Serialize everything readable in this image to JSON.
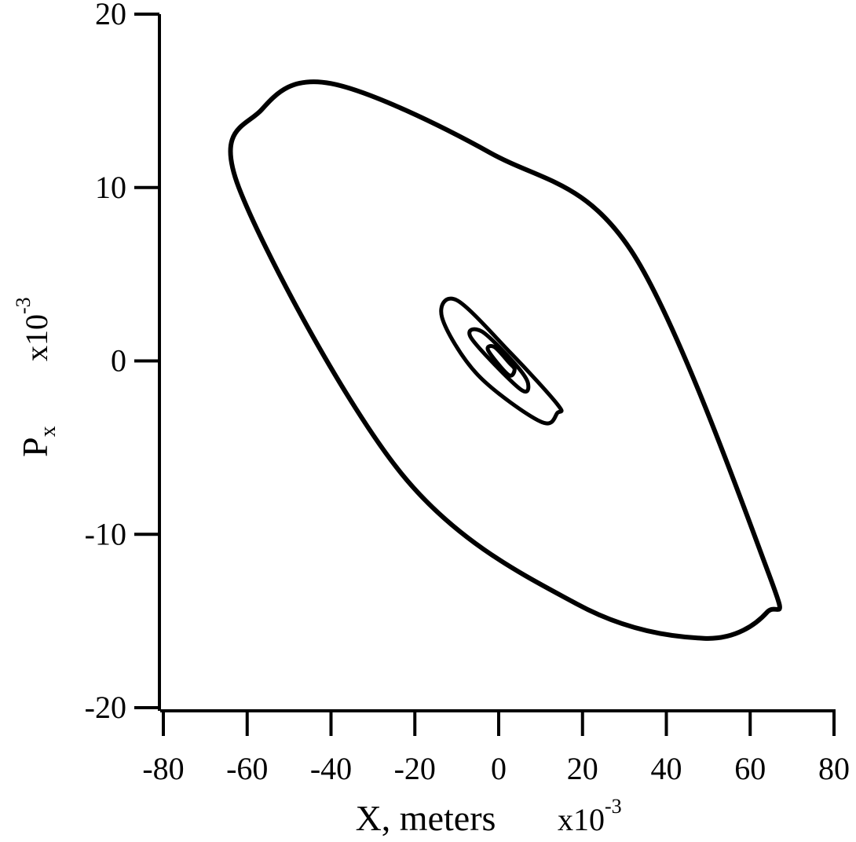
{
  "chart_data": {
    "type": "line",
    "title": "",
    "xlabel": "X, meters",
    "xlabel_multiplier": "x10",
    "xlabel_multiplier_exp": "-3",
    "ylabel_main": "P",
    "ylabel_sub": "x",
    "ylabel_multiplier": "x10",
    "ylabel_multiplier_exp": "-3",
    "xlim": [
      -80,
      80
    ],
    "ylim": [
      -20,
      20
    ],
    "x_ticks": [
      -80,
      -60,
      -40,
      -20,
      0,
      20,
      40,
      60,
      80
    ],
    "x_tick_labels": [
      "-80",
      "-60",
      "-40",
      "-20",
      "0",
      "20",
      "40",
      "60",
      "80"
    ],
    "y_ticks": [
      20,
      10,
      0,
      -10,
      -20
    ],
    "y_tick_labels": [
      "20",
      "10",
      "0",
      "-10",
      "-20"
    ],
    "grid": false,
    "legend": "none",
    "line_color": "#000000",
    "series": [
      {
        "x": [
          -62,
          -56.5,
          -40,
          -2,
          31.5,
          64,
          64,
          49,
          18.5,
          -23.2,
          -62
        ],
        "y": [
          10,
          14.5,
          16,
          12,
          6.4,
          -12,
          -14.5,
          -16,
          -14,
          -6.5,
          10
        ]
      },
      {
        "x": [
          -13.5,
          -10,
          2.7,
          14,
          14,
          10,
          -5,
          -13.5
        ],
        "y": [
          2.5,
          3.5,
          0.5,
          -2.5,
          -3,
          -3.5,
          -0.8,
          2.5
        ]
      },
      {
        "x": [
          -6.5,
          -4,
          4,
          7,
          5,
          -6.5
        ],
        "y": [
          1.3,
          1.7,
          -0.2,
          -1.3,
          -1.6,
          1.3
        ]
      },
      {
        "x": [
          -2.5,
          -1,
          2.5,
          3.8,
          2.3,
          -2.5
        ],
        "y": [
          0.6,
          0.8,
          -0.1,
          -0.5,
          -0.8,
          0.6
        ]
      }
    ]
  }
}
